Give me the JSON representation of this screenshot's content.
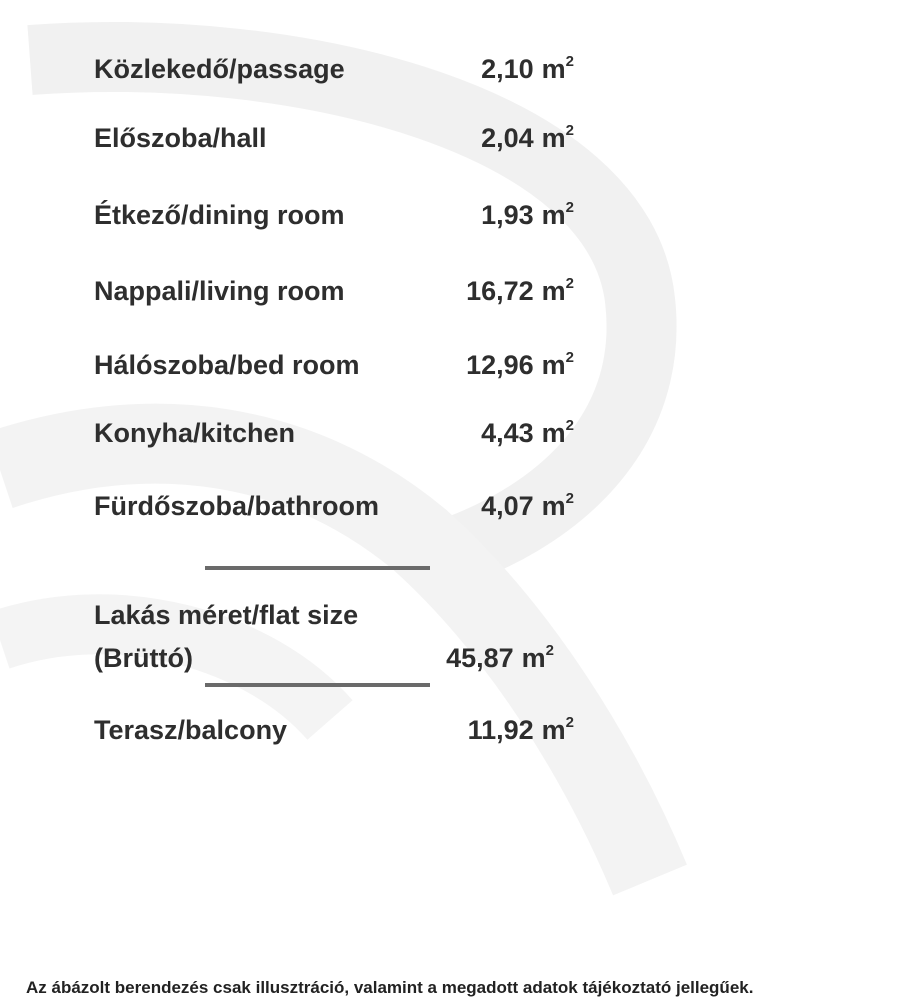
{
  "rooms": [
    {
      "label": "Közlekedő/passage",
      "value": "2,10",
      "unit": "m",
      "exp": "2"
    },
    {
      "label": "Előszoba/hall",
      "value": "2,04",
      "unit": "m",
      "exp": "2"
    },
    {
      "label": "Étkező/dining room",
      "value": "1,93",
      "unit": "m",
      "exp": "2"
    },
    {
      "label": "Nappali/living room",
      "value": "16,72",
      "unit": "m",
      "exp": "2"
    },
    {
      "label": "Hálószoba/bed room",
      "value": "12,96",
      "unit": "m",
      "exp": "2"
    },
    {
      "label": "Konyha/kitchen",
      "value": "4,43",
      "unit": "m",
      "exp": "2"
    },
    {
      "label": "Fürdőszoba/bathroom",
      "value": "4,07",
      "unit": "m",
      "exp": "2"
    }
  ],
  "total": {
    "label_line1": "Lakás méret/flat size",
    "label_line2": "(Brüttó)",
    "value": "45,87",
    "unit": "m",
    "exp": "2"
  },
  "balcony": {
    "label": "Terasz/balcony",
    "value": "11,92",
    "unit": "m",
    "exp": "2"
  },
  "footer": "Az ábázolt berendezés csak illusztráció, valamint a megadott adatok tájékoztató jellegűek.",
  "colors": {
    "text": "#2e2e2e",
    "rule": "#6a6a6a",
    "watermark": "#f1f1f1"
  }
}
